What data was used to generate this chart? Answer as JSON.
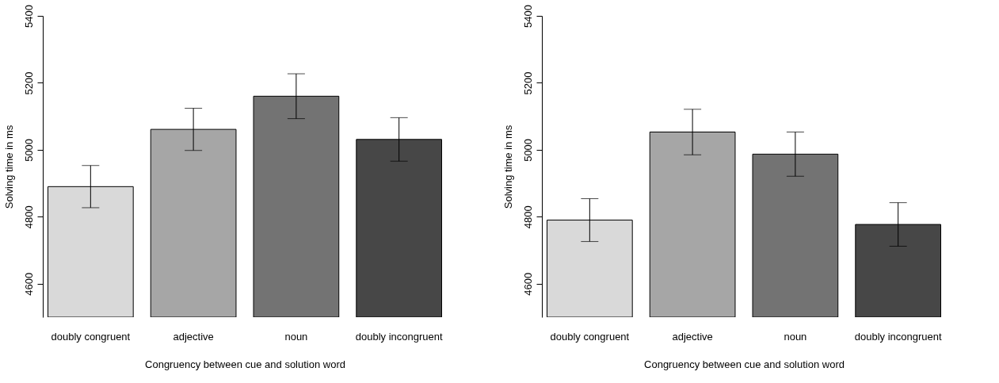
{
  "chart_data": [
    {
      "type": "bar",
      "categories": [
        "doubly congruent",
        "adjective",
        "noun",
        "doubly incongruent"
      ],
      "values": [
        4890,
        5061,
        5160,
        5031
      ],
      "errors": [
        63,
        63,
        67,
        65
      ],
      "colors": [
        "#d9d9d9",
        "#a6a6a6",
        "#737373",
        "#474747"
      ],
      "ylim": [
        4500,
        5400
      ],
      "yticks": [
        4600,
        4800,
        5000,
        5200,
        5400
      ],
      "xlabel": "Congruency between cue and solution word",
      "ylabel": "Solving time in ms"
    },
    {
      "type": "bar",
      "categories": [
        "doubly congruent",
        "adjective",
        "noun",
        "doubly incongruent"
      ],
      "values": [
        4790,
        5053,
        4987,
        4777
      ],
      "errors": [
        64,
        68,
        66,
        65
      ],
      "colors": [
        "#d9d9d9",
        "#a6a6a6",
        "#737373",
        "#474747"
      ],
      "ylim": [
        4500,
        5400
      ],
      "yticks": [
        4600,
        4800,
        5000,
        5200,
        5400
      ],
      "xlabel": "Congruency between cue and solution word",
      "ylabel": "Solving time in ms"
    }
  ]
}
